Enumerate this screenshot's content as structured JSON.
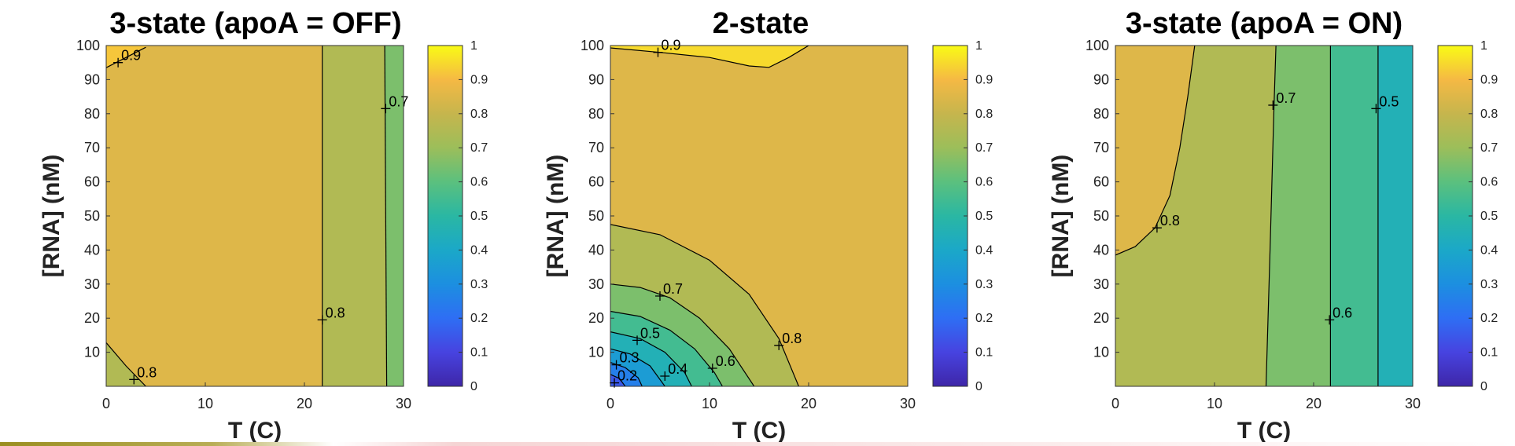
{
  "colors": {
    "colormap": [
      "#3e26a8",
      "#4743e0",
      "#2e6ef4",
      "#1c8fe0",
      "#1ba8c8",
      "#2ab7a3",
      "#5bc07e",
      "#9cbe5a",
      "#c6b54d",
      "#f5b944",
      "#f9fb15"
    ]
  },
  "chart_data": [
    {
      "type": "heatmap",
      "id": "panel-a",
      "title": "3-state (apoA = OFF)",
      "xlabel": "T (C)",
      "ylabel": "[RNA] (nM)",
      "xlim": [
        0,
        30
      ],
      "ylim": [
        0,
        100
      ],
      "xticks": [
        0,
        10,
        20,
        30
      ],
      "yticks": [
        10,
        20,
        30,
        40,
        50,
        60,
        70,
        80,
        90,
        100
      ],
      "grid": false,
      "colorbar": {
        "range": [
          0,
          1
        ],
        "ticks": [
          0,
          0.1,
          0.2,
          0.3,
          0.4,
          0.5,
          0.6,
          0.7,
          0.8,
          0.9,
          1
        ],
        "tick_labels": [
          "0",
          "0.1",
          "0.2",
          "0.3",
          "0.4",
          "0.5",
          "0.6",
          "0.7",
          "0.8",
          "0.9",
          "1"
        ]
      },
      "contour_levels": [
        0.7,
        0.8,
        0.9
      ],
      "contours": [
        {
          "level": 0.9,
          "points": [
            [
              0,
              93.5
            ],
            [
              4,
              99.5
            ]
          ]
        },
        {
          "level": 0.8,
          "points": [
            [
              0,
              12.8
            ],
            [
              2,
              6
            ],
            [
              4,
              0
            ]
          ]
        },
        {
          "level": 0.8,
          "points": [
            [
              21.8,
              0
            ],
            [
              21.8,
              100
            ]
          ]
        },
        {
          "level": 0.7,
          "points": [
            [
              28.3,
              0
            ],
            [
              28.1,
              100
            ]
          ]
        }
      ],
      "regions": [
        {
          "value": 0.85,
          "polygon": [
            [
              0,
              100
            ],
            [
              30,
              100
            ],
            [
              30,
              0
            ],
            [
              0,
              0
            ]
          ]
        },
        {
          "value": 0.75,
          "polygon": [
            [
              0,
              0
            ],
            [
              0,
              12.8
            ],
            [
              2,
              6
            ],
            [
              4,
              0
            ]
          ]
        },
        {
          "value": 0.75,
          "polygon": [
            [
              21.8,
              0
            ],
            [
              21.8,
              100
            ],
            [
              28.1,
              100
            ],
            [
              28.3,
              0
            ]
          ]
        },
        {
          "value": 0.65,
          "polygon": [
            [
              28.3,
              0
            ],
            [
              28.1,
              100
            ],
            [
              30,
              100
            ],
            [
              30,
              0
            ]
          ]
        },
        {
          "value": 0.92,
          "polygon": [
            [
              0,
              93.5
            ],
            [
              4,
              99.5
            ],
            [
              4,
              100
            ],
            [
              0,
              100
            ]
          ]
        }
      ],
      "labels": [
        {
          "text": "0.9",
          "x": 1.2,
          "y": 95
        },
        {
          "text": "0.8",
          "x": 2.8,
          "y": 2
        },
        {
          "text": "0.8",
          "x": 21.8,
          "y": 19.5
        },
        {
          "text": "0.7",
          "x": 28.2,
          "y": 81.5
        }
      ]
    },
    {
      "type": "heatmap",
      "id": "panel-b",
      "title": "2-state",
      "xlabel": "T (C)",
      "ylabel": "[RNA] (nM)",
      "xlim": [
        0,
        30
      ],
      "ylim": [
        0,
        100
      ],
      "xticks": [
        0,
        10,
        20,
        30
      ],
      "yticks": [
        10,
        20,
        30,
        40,
        50,
        60,
        70,
        80,
        90,
        100
      ],
      "grid": false,
      "colorbar": {
        "range": [
          0,
          1
        ],
        "ticks": [
          0,
          0.1,
          0.2,
          0.3,
          0.4,
          0.5,
          0.6,
          0.7,
          0.8,
          0.9,
          1
        ],
        "tick_labels": [
          "0",
          "0.1",
          "0.2",
          "0.3",
          "0.4",
          "0.5",
          "0.6",
          "0.7",
          "0.8",
          "0.9",
          "1"
        ]
      },
      "contour_levels": [
        0.2,
        0.3,
        0.4,
        0.5,
        0.6,
        0.7,
        0.8,
        0.9
      ],
      "contours": [
        {
          "level": 0.9,
          "points": [
            [
              0,
              99.3
            ],
            [
              5,
              98
            ],
            [
              10,
              96.5
            ],
            [
              14,
              94
            ],
            [
              16,
              93.6
            ],
            [
              18,
              96.5
            ],
            [
              20,
              100
            ]
          ]
        },
        {
          "level": 0.8,
          "points": [
            [
              0,
              47.5
            ],
            [
              5,
              44.5
            ],
            [
              10,
              37
            ],
            [
              14,
              27
            ],
            [
              17,
              14
            ],
            [
              19,
              0
            ]
          ]
        },
        {
          "level": 0.7,
          "points": [
            [
              0,
              30
            ],
            [
              3,
              29
            ],
            [
              6,
              26
            ],
            [
              9,
              20
            ],
            [
              12,
              11
            ],
            [
              14.5,
              0
            ]
          ]
        },
        {
          "level": 0.6,
          "points": [
            [
              0,
              22
            ],
            [
              3,
              20.5
            ],
            [
              6,
              16.5
            ],
            [
              8.5,
              11
            ],
            [
              10.5,
              4
            ],
            [
              11.3,
              0
            ]
          ]
        },
        {
          "level": 0.5,
          "points": [
            [
              0,
              16
            ],
            [
              3,
              14
            ],
            [
              5.5,
              10
            ],
            [
              7.5,
              4
            ],
            [
              8.2,
              0
            ]
          ]
        },
        {
          "level": 0.4,
          "points": [
            [
              0,
              11
            ],
            [
              2,
              9.5
            ],
            [
              4,
              6
            ],
            [
              5.5,
              0
            ]
          ]
        },
        {
          "level": 0.3,
          "points": [
            [
              0,
              7
            ],
            [
              1.5,
              5.5
            ],
            [
              2.8,
              2.5
            ],
            [
              3.2,
              0
            ]
          ]
        },
        {
          "level": 0.2,
          "points": [
            [
              0,
              3.5
            ],
            [
              0.9,
              2.3
            ],
            [
              1.5,
              0
            ]
          ]
        }
      ],
      "regions": [
        {
          "value": 0.85,
          "polygon": [
            [
              0,
              0
            ],
            [
              0,
              100
            ],
            [
              30,
              100
            ],
            [
              30,
              0
            ]
          ]
        },
        {
          "value": 0.95,
          "polygon": [
            [
              0,
              100
            ],
            [
              0,
              99.3
            ],
            [
              5,
              98
            ],
            [
              10,
              96.5
            ],
            [
              14,
              94
            ],
            [
              16,
              93.6
            ],
            [
              18,
              96.5
            ],
            [
              20,
              100
            ]
          ]
        },
        {
          "value": 0.75,
          "polygon": [
            [
              0,
              0
            ],
            [
              0,
              47.5
            ],
            [
              5,
              44.5
            ],
            [
              10,
              37
            ],
            [
              14,
              27
            ],
            [
              17,
              14
            ],
            [
              19,
              0
            ]
          ]
        },
        {
          "value": 0.65,
          "polygon": [
            [
              0,
              0
            ],
            [
              0,
              30
            ],
            [
              3,
              29
            ],
            [
              6,
              26
            ],
            [
              9,
              20
            ],
            [
              12,
              11
            ],
            [
              14.5,
              0
            ]
          ]
        },
        {
          "value": 0.55,
          "polygon": [
            [
              0,
              0
            ],
            [
              0,
              22
            ],
            [
              3,
              20.5
            ],
            [
              6,
              16.5
            ],
            [
              8.5,
              11
            ],
            [
              10.5,
              4
            ],
            [
              11.3,
              0
            ]
          ]
        },
        {
          "value": 0.45,
          "polygon": [
            [
              0,
              0
            ],
            [
              0,
              16
            ],
            [
              3,
              14
            ],
            [
              5.5,
              10
            ],
            [
              7.5,
              4
            ],
            [
              8.2,
              0
            ]
          ]
        },
        {
          "value": 0.35,
          "polygon": [
            [
              0,
              0
            ],
            [
              0,
              11
            ],
            [
              2,
              9.5
            ],
            [
              4,
              6
            ],
            [
              5.5,
              0
            ]
          ]
        },
        {
          "value": 0.25,
          "polygon": [
            [
              0,
              0
            ],
            [
              0,
              7
            ],
            [
              1.5,
              5.5
            ],
            [
              2.8,
              2.5
            ],
            [
              3.2,
              0
            ]
          ]
        },
        {
          "value": 0.15,
          "polygon": [
            [
              0,
              0
            ],
            [
              0,
              3.5
            ],
            [
              0.9,
              2.3
            ],
            [
              1.5,
              0
            ]
          ]
        }
      ],
      "labels": [
        {
          "text": "0.9",
          "x": 4.8,
          "y": 98
        },
        {
          "text": "0.8",
          "x": 17,
          "y": 12
        },
        {
          "text": "0.7",
          "x": 5,
          "y": 26.5
        },
        {
          "text": "0.6",
          "x": 10.3,
          "y": 5.3
        },
        {
          "text": "0.5",
          "x": 2.7,
          "y": 13.5
        },
        {
          "text": "0.4",
          "x": 5.5,
          "y": 3
        },
        {
          "text": "0.3",
          "x": 0.6,
          "y": 6.3
        },
        {
          "text": "0.2",
          "x": 0.4,
          "y": 1
        }
      ]
    },
    {
      "type": "heatmap",
      "id": "panel-c",
      "title": "3-state (apoA = ON)",
      "xlabel": "T (C)",
      "ylabel": "[RNA] (nM)",
      "xlim": [
        0,
        30
      ],
      "ylim": [
        0,
        100
      ],
      "xticks": [
        0,
        10,
        20,
        30
      ],
      "yticks": [
        10,
        20,
        30,
        40,
        50,
        60,
        70,
        80,
        90,
        100
      ],
      "grid": false,
      "colorbar": {
        "range": [
          0,
          1
        ],
        "ticks": [
          0,
          0.1,
          0.2,
          0.3,
          0.4,
          0.5,
          0.6,
          0.7,
          0.8,
          0.9,
          1
        ],
        "tick_labels": [
          "0",
          "0.1",
          "0.2",
          "0.3",
          "0.4",
          "0.5",
          "0.6",
          "0.7",
          "0.8",
          "0.9",
          "1"
        ]
      },
      "contour_levels": [
        0.5,
        0.6,
        0.7,
        0.8
      ],
      "contours": [
        {
          "level": 0.8,
          "points": [
            [
              0,
              38.5
            ],
            [
              2,
              41
            ],
            [
              4,
              46.5
            ],
            [
              5.5,
              56
            ],
            [
              6.5,
              70
            ],
            [
              7.3,
              85
            ],
            [
              8,
              100
            ]
          ]
        },
        {
          "level": 0.7,
          "points": [
            [
              15.2,
              0
            ],
            [
              15.6,
              40
            ],
            [
              16,
              82
            ],
            [
              16.2,
              100
            ]
          ]
        },
        {
          "level": 0.6,
          "points": [
            [
              21.7,
              0
            ],
            [
              21.7,
              100
            ]
          ]
        },
        {
          "level": 0.5,
          "points": [
            [
              26.5,
              0
            ],
            [
              26.5,
              100
            ]
          ]
        }
      ],
      "regions": [
        {
          "value": 0.75,
          "polygon": [
            [
              0,
              0
            ],
            [
              0,
              100
            ],
            [
              30,
              100
            ],
            [
              30,
              0
            ]
          ]
        },
        {
          "value": 0.85,
          "polygon": [
            [
              0,
              38.5
            ],
            [
              2,
              41
            ],
            [
              4,
              46.5
            ],
            [
              5.5,
              56
            ],
            [
              6.5,
              70
            ],
            [
              7.3,
              85
            ],
            [
              8,
              100
            ],
            [
              0,
              100
            ]
          ]
        },
        {
          "value": 0.65,
          "polygon": [
            [
              15.2,
              0
            ],
            [
              15.6,
              40
            ],
            [
              16,
              82
            ],
            [
              16.2,
              100
            ],
            [
              30,
              100
            ],
            [
              30,
              0
            ]
          ]
        },
        {
          "value": 0.55,
          "polygon": [
            [
              21.7,
              0
            ],
            [
              21.7,
              100
            ],
            [
              30,
              100
            ],
            [
              30,
              0
            ]
          ]
        },
        {
          "value": 0.45,
          "polygon": [
            [
              26.5,
              0
            ],
            [
              26.5,
              100
            ],
            [
              30,
              100
            ],
            [
              30,
              0
            ]
          ]
        }
      ],
      "labels": [
        {
          "text": "0.8",
          "x": 4.2,
          "y": 46.5
        },
        {
          "text": "0.7",
          "x": 15.9,
          "y": 82.5
        },
        {
          "text": "0.6",
          "x": 21.6,
          "y": 19.5
        },
        {
          "text": "0.5",
          "x": 26.3,
          "y": 81.5
        }
      ]
    }
  ]
}
